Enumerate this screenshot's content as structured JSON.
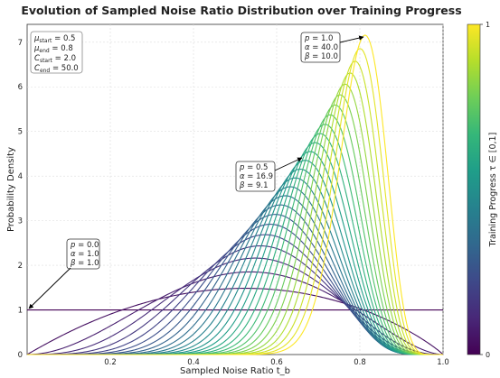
{
  "chart_data": {
    "type": "line",
    "title": "Evolution of Sampled Noise Ratio Distribution over Training Progress",
    "xlabel": "Sampled Noise Ratio t_b",
    "ylabel": "Probability Density",
    "xlim": [
      0.0,
      1.0
    ],
    "ylim": [
      0,
      7.4
    ],
    "xticks": [
      "0.2",
      "0.4",
      "0.6",
      "0.8",
      "1.0"
    ],
    "yticks": [
      "0",
      "1",
      "2",
      "3",
      "4",
      "5",
      "6",
      "7"
    ],
    "grid": true,
    "params_box": {
      "mu_start": "0.5",
      "mu_end": "0.8",
      "c_start": "2.0",
      "c_end": "50.0"
    },
    "params_box_labels": {
      "mu_start": "μ",
      "mu_start_sub": "start",
      "mu_end": "μ",
      "mu_end_sub": "end",
      "c_start": "C",
      "c_start_sub": "start",
      "c_end": "C",
      "c_end_sub": "end"
    },
    "annotations": [
      {
        "p": "1.0",
        "alpha": "40.0",
        "beta": "10.0",
        "point": [
          0.815,
          7.13
        ]
      },
      {
        "p": "0.5",
        "alpha": "16.9",
        "beta": "9.1",
        "point": [
          0.67,
          4.4
        ]
      },
      {
        "p": "0.0",
        "alpha": "1.0",
        "beta": "1.0",
        "point": [
          0.0,
          1.0
        ]
      }
    ],
    "curve_family": {
      "description_of_series": "Beta(alpha, beta) densities for p = 0.0 ... 1.0",
      "p_values": [
        0.0,
        0.04,
        0.08,
        0.12,
        0.16,
        0.2,
        0.24,
        0.28,
        0.32,
        0.36,
        0.4,
        0.44,
        0.48,
        0.52,
        0.56,
        0.6,
        0.64,
        0.68,
        0.72,
        0.76,
        0.8,
        0.84,
        0.88,
        0.92,
        0.96,
        1.0
      ],
      "mu": {
        "start": 0.5,
        "end": 0.8
      },
      "C": {
        "start": 2.0,
        "end": 50.0
      }
    },
    "colorbar": {
      "label": "Training Progress τ ∈ [0,1]",
      "ticks": [
        "0",
        "1"
      ],
      "colormap": [
        "#440154",
        "#482878",
        "#3e4989",
        "#31688e",
        "#26828e",
        "#1f9e89",
        "#35b779",
        "#6ece58",
        "#b5de2b",
        "#fde725"
      ]
    }
  }
}
